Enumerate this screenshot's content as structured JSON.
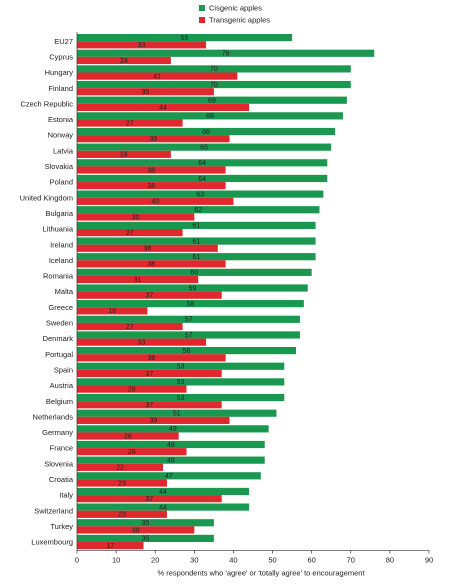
{
  "chart_data": {
    "type": "bar",
    "orientation": "horizontal",
    "legend_position": "top-center",
    "grid": false,
    "xlabel": "% respondents who 'agree' or 'totally agree' to encouragement",
    "xlim": [
      0,
      90
    ],
    "xticks": [
      0,
      10,
      20,
      30,
      40,
      50,
      60,
      70,
      80,
      90
    ],
    "colors": {
      "Cisgenic apples": "#1a9850",
      "Transgenic apples": "#e0282f"
    },
    "categories": [
      "EU27",
      "Cyprus",
      "Hungary",
      "Finland",
      "Czech Republic",
      "Estonia",
      "Norway",
      "Latvia",
      "Slovakia",
      "Poland",
      "United Kingdom",
      "Bulgaria",
      "Lithuania",
      "Ireland",
      "Iceland",
      "Romania",
      "Malta",
      "Greece",
      "Sweden",
      "Denmark",
      "Portugal",
      "Spain",
      "Austria",
      "Belgium",
      "Netherlands",
      "Germany",
      "France",
      "Slovenia",
      "Croatia",
      "Italy",
      "Switzerland",
      "Turkey",
      "Luxembourg"
    ],
    "series": [
      {
        "name": "Cisgenic apples",
        "values": [
          55,
          76,
          70,
          70,
          69,
          68,
          66,
          65,
          64,
          64,
          63,
          62,
          61,
          61,
          61,
          60,
          59,
          58,
          57,
          57,
          56,
          53,
          53,
          53,
          51,
          49,
          48,
          48,
          47,
          44,
          44,
          35,
          35
        ]
      },
      {
        "name": "Transgenic apples",
        "values": [
          33,
          24,
          41,
          35,
          44,
          27,
          39,
          24,
          38,
          38,
          40,
          30,
          27,
          36,
          38,
          31,
          37,
          18,
          27,
          33,
          38,
          37,
          28,
          37,
          39,
          26,
          28,
          22,
          23,
          37,
          23,
          30,
          17
        ]
      }
    ]
  }
}
